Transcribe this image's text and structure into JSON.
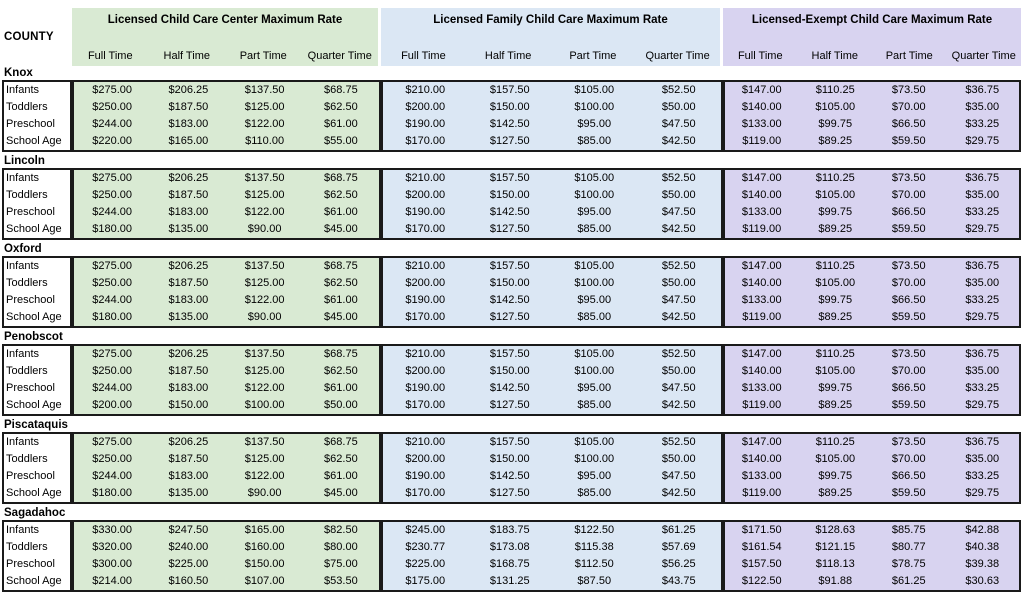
{
  "header": {
    "county_label": "COUNTY",
    "groups": [
      {
        "id": "center",
        "title": "Licensed Child Care Center Maximum Rate",
        "color": "#d9ead3",
        "columns": [
          "Full Time",
          "Half Time",
          "Part Time",
          "Quarter Time"
        ]
      },
      {
        "id": "family",
        "title": "Licensed Family Child Care Maximum Rate",
        "color": "#dbe7f4",
        "columns": [
          "Full Time",
          "Half Time",
          "Part Time",
          "Quarter Time"
        ]
      },
      {
        "id": "exempt",
        "title": "Licensed-Exempt Child Care Maximum Rate",
        "color": "#d8d3f0",
        "columns": [
          "Full Time",
          "Half Time",
          "Part Time",
          "Quarter Time"
        ]
      }
    ]
  },
  "age_groups": [
    "Infants",
    "Toddlers",
    "Preschool",
    "School Age"
  ],
  "border_color": "#1a1a1a",
  "counties": [
    {
      "name": "Knox",
      "rates": {
        "center": [
          [
            "$275.00",
            "$206.25",
            "$137.50",
            "$68.75"
          ],
          [
            "$250.00",
            "$187.50",
            "$125.00",
            "$62.50"
          ],
          [
            "$244.00",
            "$183.00",
            "$122.00",
            "$61.00"
          ],
          [
            "$220.00",
            "$165.00",
            "$110.00",
            "$55.00"
          ]
        ],
        "family": [
          [
            "$210.00",
            "$157.50",
            "$105.00",
            "$52.50"
          ],
          [
            "$200.00",
            "$150.00",
            "$100.00",
            "$50.00"
          ],
          [
            "$190.00",
            "$142.50",
            "$95.00",
            "$47.50"
          ],
          [
            "$170.00",
            "$127.50",
            "$85.00",
            "$42.50"
          ]
        ],
        "exempt": [
          [
            "$147.00",
            "$110.25",
            "$73.50",
            "$36.75"
          ],
          [
            "$140.00",
            "$105.00",
            "$70.00",
            "$35.00"
          ],
          [
            "$133.00",
            "$99.75",
            "$66.50",
            "$33.25"
          ],
          [
            "$119.00",
            "$89.25",
            "$59.50",
            "$29.75"
          ]
        ]
      }
    },
    {
      "name": "Lincoln",
      "rates": {
        "center": [
          [
            "$275.00",
            "$206.25",
            "$137.50",
            "$68.75"
          ],
          [
            "$250.00",
            "$187.50",
            "$125.00",
            "$62.50"
          ],
          [
            "$244.00",
            "$183.00",
            "$122.00",
            "$61.00"
          ],
          [
            "$180.00",
            "$135.00",
            "$90.00",
            "$45.00"
          ]
        ],
        "family": [
          [
            "$210.00",
            "$157.50",
            "$105.00",
            "$52.50"
          ],
          [
            "$200.00",
            "$150.00",
            "$100.00",
            "$50.00"
          ],
          [
            "$190.00",
            "$142.50",
            "$95.00",
            "$47.50"
          ],
          [
            "$170.00",
            "$127.50",
            "$85.00",
            "$42.50"
          ]
        ],
        "exempt": [
          [
            "$147.00",
            "$110.25",
            "$73.50",
            "$36.75"
          ],
          [
            "$140.00",
            "$105.00",
            "$70.00",
            "$35.00"
          ],
          [
            "$133.00",
            "$99.75",
            "$66.50",
            "$33.25"
          ],
          [
            "$119.00",
            "$89.25",
            "$59.50",
            "$29.75"
          ]
        ]
      }
    },
    {
      "name": "Oxford",
      "rates": {
        "center": [
          [
            "$275.00",
            "$206.25",
            "$137.50",
            "$68.75"
          ],
          [
            "$250.00",
            "$187.50",
            "$125.00",
            "$62.50"
          ],
          [
            "$244.00",
            "$183.00",
            "$122.00",
            "$61.00"
          ],
          [
            "$180.00",
            "$135.00",
            "$90.00",
            "$45.00"
          ]
        ],
        "family": [
          [
            "$210.00",
            "$157.50",
            "$105.00",
            "$52.50"
          ],
          [
            "$200.00",
            "$150.00",
            "$100.00",
            "$50.00"
          ],
          [
            "$190.00",
            "$142.50",
            "$95.00",
            "$47.50"
          ],
          [
            "$170.00",
            "$127.50",
            "$85.00",
            "$42.50"
          ]
        ],
        "exempt": [
          [
            "$147.00",
            "$110.25",
            "$73.50",
            "$36.75"
          ],
          [
            "$140.00",
            "$105.00",
            "$70.00",
            "$35.00"
          ],
          [
            "$133.00",
            "$99.75",
            "$66.50",
            "$33.25"
          ],
          [
            "$119.00",
            "$89.25",
            "$59.50",
            "$29.75"
          ]
        ]
      }
    },
    {
      "name": "Penobscot",
      "rates": {
        "center": [
          [
            "$275.00",
            "$206.25",
            "$137.50",
            "$68.75"
          ],
          [
            "$250.00",
            "$187.50",
            "$125.00",
            "$62.50"
          ],
          [
            "$244.00",
            "$183.00",
            "$122.00",
            "$61.00"
          ],
          [
            "$200.00",
            "$150.00",
            "$100.00",
            "$50.00"
          ]
        ],
        "family": [
          [
            "$210.00",
            "$157.50",
            "$105.00",
            "$52.50"
          ],
          [
            "$200.00",
            "$150.00",
            "$100.00",
            "$50.00"
          ],
          [
            "$190.00",
            "$142.50",
            "$95.00",
            "$47.50"
          ],
          [
            "$170.00",
            "$127.50",
            "$85.00",
            "$42.50"
          ]
        ],
        "exempt": [
          [
            "$147.00",
            "$110.25",
            "$73.50",
            "$36.75"
          ],
          [
            "$140.00",
            "$105.00",
            "$70.00",
            "$35.00"
          ],
          [
            "$133.00",
            "$99.75",
            "$66.50",
            "$33.25"
          ],
          [
            "$119.00",
            "$89.25",
            "$59.50",
            "$29.75"
          ]
        ]
      }
    },
    {
      "name": "Piscataquis",
      "rates": {
        "center": [
          [
            "$275.00",
            "$206.25",
            "$137.50",
            "$68.75"
          ],
          [
            "$250.00",
            "$187.50",
            "$125.00",
            "$62.50"
          ],
          [
            "$244.00",
            "$183.00",
            "$122.00",
            "$61.00"
          ],
          [
            "$180.00",
            "$135.00",
            "$90.00",
            "$45.00"
          ]
        ],
        "family": [
          [
            "$210.00",
            "$157.50",
            "$105.00",
            "$52.50"
          ],
          [
            "$200.00",
            "$150.00",
            "$100.00",
            "$50.00"
          ],
          [
            "$190.00",
            "$142.50",
            "$95.00",
            "$47.50"
          ],
          [
            "$170.00",
            "$127.50",
            "$85.00",
            "$42.50"
          ]
        ],
        "exempt": [
          [
            "$147.00",
            "$110.25",
            "$73.50",
            "$36.75"
          ],
          [
            "$140.00",
            "$105.00",
            "$70.00",
            "$35.00"
          ],
          [
            "$133.00",
            "$99.75",
            "$66.50",
            "$33.25"
          ],
          [
            "$119.00",
            "$89.25",
            "$59.50",
            "$29.75"
          ]
        ]
      }
    },
    {
      "name": "Sagadahoc",
      "rates": {
        "center": [
          [
            "$330.00",
            "$247.50",
            "$165.00",
            "$82.50"
          ],
          [
            "$320.00",
            "$240.00",
            "$160.00",
            "$80.00"
          ],
          [
            "$300.00",
            "$225.00",
            "$150.00",
            "$75.00"
          ],
          [
            "$214.00",
            "$160.50",
            "$107.00",
            "$53.50"
          ]
        ],
        "family": [
          [
            "$245.00",
            "$183.75",
            "$122.50",
            "$61.25"
          ],
          [
            "$230.77",
            "$173.08",
            "$115.38",
            "$57.69"
          ],
          [
            "$225.00",
            "$168.75",
            "$112.50",
            "$56.25"
          ],
          [
            "$175.00",
            "$131.25",
            "$87.50",
            "$43.75"
          ]
        ],
        "exempt": [
          [
            "$171.50",
            "$128.63",
            "$85.75",
            "$42.88"
          ],
          [
            "$161.54",
            "$121.15",
            "$80.77",
            "$40.38"
          ],
          [
            "$157.50",
            "$118.13",
            "$78.75",
            "$39.38"
          ],
          [
            "$122.50",
            "$91.88",
            "$61.25",
            "$30.63"
          ]
        ]
      }
    }
  ]
}
